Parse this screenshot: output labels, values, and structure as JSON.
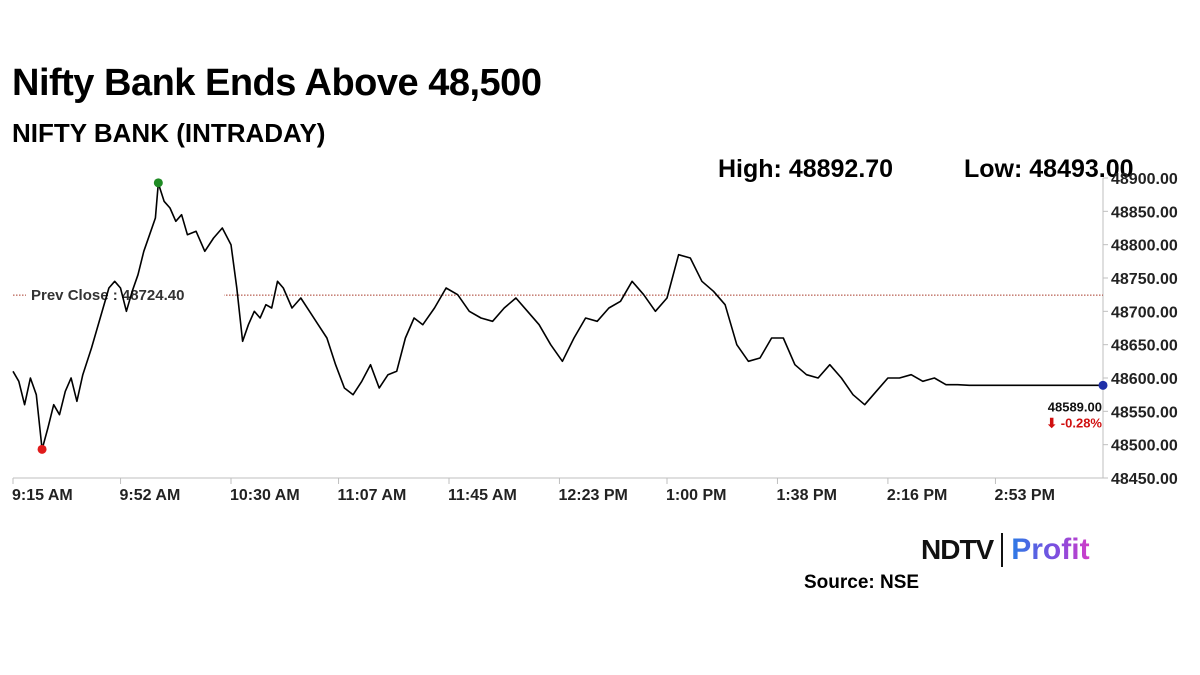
{
  "headline": "Nifty Bank Ends Above 48,500",
  "subheadline": "NIFTY BANK (INTRADAY)",
  "stats": {
    "high_label": "High: 48892.70",
    "low_label": "Low: 48493.00"
  },
  "brand": {
    "left": "NDTV",
    "right": "Profit"
  },
  "source": "Source: NSE",
  "colors": {
    "line": "#000000",
    "prev_close": "#a83a2a",
    "high_marker": "#1f8b24",
    "low_marker": "#e01b1b",
    "last_marker": "#1f2fa8",
    "change_negative": "#d01010",
    "axis": "#bfbfbf"
  },
  "chart_data": {
    "type": "line",
    "title": "NIFTY BANK (INTRADAY)",
    "xlabel": "",
    "ylabel": "",
    "xlim": [
      "9:15 AM",
      "3:30 PM"
    ],
    "ylim": [
      48450,
      48900
    ],
    "grid": false,
    "x_ticks": [
      "9:15 AM",
      "9:52 AM",
      "10:30 AM",
      "11:07 AM",
      "11:45 AM",
      "12:23 PM",
      "1:00 PM",
      "1:38 PM",
      "2:16 PM",
      "2:53 PM"
    ],
    "y_ticks": [
      "48900.00",
      "48850.00",
      "48800.00",
      "48750.00",
      "48700.00",
      "48650.00",
      "48600.00",
      "48550.00",
      "48500.00",
      "48450.00"
    ],
    "prev_close": {
      "label": "Prev Close : 48724.40",
      "value": 48724.4
    },
    "high": {
      "time": "10:05 AM",
      "value": 48892.7
    },
    "low": {
      "time": "9:25 AM",
      "value": 48493.0
    },
    "last": {
      "time": "3:30 PM",
      "value": 48589.0,
      "label": "48589.00",
      "change_label": "⬇ -0.28%"
    },
    "series": [
      {
        "x": [
          "9:15 AM",
          "9:17 AM",
          "9:19 AM",
          "9:21 AM",
          "9:23 AM",
          "9:25 AM",
          "9:27 AM",
          "9:29 AM",
          "9:31 AM",
          "9:33 AM",
          "9:35 AM",
          "9:37 AM",
          "9:39 AM",
          "9:42 AM",
          "9:45 AM",
          "9:48 AM",
          "9:50 AM",
          "9:52 AM",
          "9:54 AM",
          "9:56 AM",
          "9:58 AM",
          "10:00 AM",
          "10:02 AM",
          "10:04 AM",
          "10:05 AM",
          "10:07 AM",
          "10:09 AM",
          "10:11 AM",
          "10:13 AM",
          "10:15 AM",
          "10:18 AM",
          "10:21 AM",
          "10:24 AM",
          "10:27 AM",
          "10:30 AM",
          "10:32 AM",
          "10:34 AM",
          "10:36 AM",
          "10:38 AM",
          "10:40 AM",
          "10:42 AM",
          "10:44 AM",
          "10:46 AM",
          "10:48 AM",
          "10:51 AM",
          "10:54 AM",
          "10:57 AM",
          "11:00 AM",
          "11:03 AM",
          "11:06 AM",
          "11:09 AM",
          "11:12 AM",
          "11:15 AM",
          "11:18 AM",
          "11:21 AM",
          "11:24 AM",
          "11:27 AM",
          "11:30 AM",
          "11:33 AM",
          "11:36 AM",
          "11:40 AM",
          "11:44 AM",
          "11:48 AM",
          "11:52 AM",
          "11:56 AM",
          "12:00 PM",
          "12:04 PM",
          "12:08 PM",
          "12:12 PM",
          "12:16 PM",
          "12:20 PM",
          "12:24 PM",
          "12:28 PM",
          "12:32 PM",
          "12:36 PM",
          "12:40 PM",
          "12:44 PM",
          "12:48 PM",
          "12:52 PM",
          "12:56 PM",
          "1:00 PM",
          "1:04 PM",
          "1:08 PM",
          "1:12 PM",
          "1:16 PM",
          "1:20 PM",
          "1:24 PM",
          "1:28 PM",
          "1:32 PM",
          "1:36 PM",
          "1:40 PM",
          "1:44 PM",
          "1:48 PM",
          "1:52 PM",
          "1:56 PM",
          "2:00 PM",
          "2:04 PM",
          "2:08 PM",
          "2:12 PM",
          "2:16 PM",
          "2:20 PM",
          "2:24 PM",
          "2:28 PM",
          "2:32 PM",
          "2:36 PM",
          "2:40 PM",
          "2:44 PM",
          "2:48 PM",
          "2:52 PM",
          "2:56 PM",
          "3:00 PM",
          "3:04 PM",
          "3:08 PM",
          "3:12 PM",
          "3:16 PM",
          "3:20 PM",
          "3:25 PM",
          "3:30 PM"
        ],
        "y": [
          48610,
          48595,
          48560,
          48600,
          48575,
          48493,
          48525,
          48560,
          48545,
          48580,
          48600,
          48565,
          48605,
          48645,
          48690,
          48735,
          48745,
          48735,
          48700,
          48730,
          48755,
          48790,
          48815,
          48840,
          48892,
          48865,
          48855,
          48835,
          48845,
          48815,
          48820,
          48790,
          48810,
          48825,
          48800,
          48735,
          48655,
          48680,
          48700,
          48690,
          48710,
          48705,
          48745,
          48735,
          48705,
          48720,
          48700,
          48680,
          48660,
          48620,
          48585,
          48575,
          48595,
          48620,
          48585,
          48605,
          48610,
          48660,
          48690,
          48680,
          48705,
          48735,
          48725,
          48700,
          48690,
          48685,
          48705,
          48720,
          48700,
          48680,
          48650,
          48625,
          48660,
          48690,
          48685,
          48705,
          48715,
          48745,
          48725,
          48700,
          48720,
          48785,
          48780,
          48745,
          48730,
          48710,
          48650,
          48625,
          48630,
          48660,
          48660,
          48620,
          48605,
          48600,
          48620,
          48600,
          48575,
          48560,
          48580,
          48600,
          48600,
          48605,
          48595,
          48600,
          48590,
          48590,
          48589,
          48589,
          48589,
          48589,
          48589,
          48589,
          48589,
          48589,
          48589,
          48589,
          48589,
          48589
        ]
      }
    ]
  }
}
